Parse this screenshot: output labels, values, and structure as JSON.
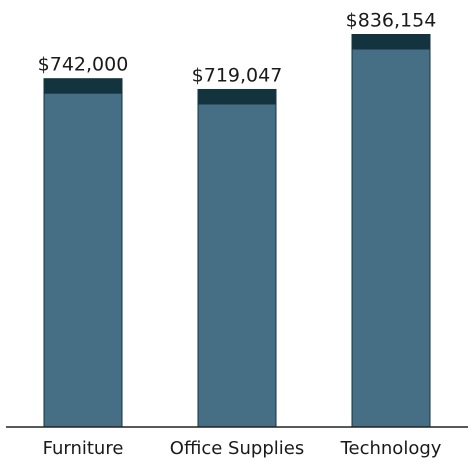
{
  "chart_data": {
    "type": "bar",
    "categories": [
      "Furniture",
      "Office Supplies",
      "Technology"
    ],
    "values": [
      742000,
      719047,
      836154
    ],
    "data_labels": [
      "$742,000",
      "$719,047",
      "$836,154"
    ],
    "title": "",
    "xlabel": "",
    "ylabel": "",
    "ylim": [
      0,
      850000
    ],
    "grid": false,
    "legend": "none",
    "colors": {
      "bar_fill": "#466E85",
      "bar_cap": "#13343F",
      "axis": "#222222",
      "text": "#1a1a1a"
    }
  }
}
